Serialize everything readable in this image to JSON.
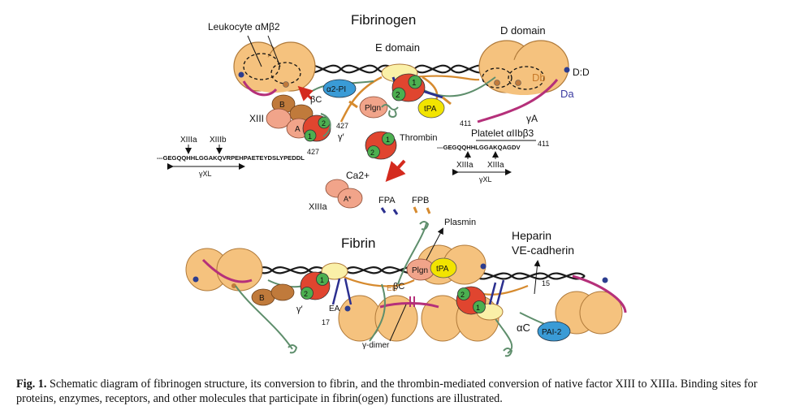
{
  "colors": {
    "domain_fill": "#f5c27e",
    "domain_stroke": "#b07a3a",
    "coil": "#1a1a1a",
    "chain_green": "#5e8e6c",
    "chain_magenta": "#b5307a",
    "chain_orange": "#d68a2e",
    "fpa_blue": "#2b2f8f",
    "thrombin_red": "#e0452f",
    "thrombin_green": "#4caf50",
    "factor_xiii_pink": "#f1a48a",
    "factor_xiii_brown": "#c07a3b",
    "plgn": "#f1a48a",
    "tpa": "#f2e400",
    "a2pi": "#3a9bd6",
    "e_domain_yellow": "#faf0a8",
    "arrow_red": "#d42a1e",
    "da_label": "#3a3aa0",
    "db_label": "#c77a2a",
    "point_blue": "#2c3d8f"
  },
  "top": {
    "title": "Fibrinogen",
    "e_domain": "E domain",
    "d_domain": "D domain",
    "leukocyte": "Leukocyte αMβ2",
    "dd": "D:D",
    "db": "Db",
    "da": "Da",
    "gamma_a": "γA",
    "n411_left": "411",
    "a2pi": "α2-PI",
    "beta_c": "βC",
    "xiii": "XIII",
    "b": "B",
    "a": "A",
    "num_1": "1",
    "num_2": "2",
    "n427_top": "427",
    "gamma_prime": "γ′",
    "n427_bottom": "427",
    "plgn": "Plgn",
    "tpa": "tPA",
    "thrombin": "Thrombin",
    "ca2": "Ca2+",
    "xiiia_left": "XIIIa",
    "xiiib": "XIIIb",
    "seq_left": "---GEGQQHHLGGAKQVRPEHPAETEYDSLYPEDDL",
    "gamma_xl_left": "γXL",
    "platelet": "Platelet αIIbβ3",
    "seq_right": "---GEGQQHHLGGAKQAGDV",
    "n411_right": "411",
    "xiiia_r1": "XIIIa",
    "xiiia_r2": "XIIIa",
    "gamma_xl_right": "γXL",
    "xiiia_active": "XIIIa",
    "a_star": "A*",
    "fpa": "FPA",
    "fpb": "FPB"
  },
  "bottom": {
    "title": "Fibrin",
    "plasmin": "Plasmin",
    "heparin": "Heparin",
    "ve_cadherin": "VE-cadherin",
    "plgn": "Plgn",
    "tpa": "tPA",
    "eb": "EB",
    "beta_c": "βC",
    "ea": "EA",
    "n17": "17",
    "n15": "15",
    "gamma_prime": "γ′",
    "b": "B",
    "gamma_dimer": "γ-dimer",
    "alpha_c": "αC",
    "pai2": "PAI-2",
    "num_1": "1",
    "num_2": "2"
  },
  "caption": {
    "label": "Fig. 1.",
    "text": "Schematic diagram of fibrinogen structure, its conversion to fibrin, and the thrombin-mediated conversion of native factor XIII to XIIIa. Binding sites for proteins, enzymes, receptors, and other molecules that participate in fibrin(ogen) functions are illustrated."
  }
}
